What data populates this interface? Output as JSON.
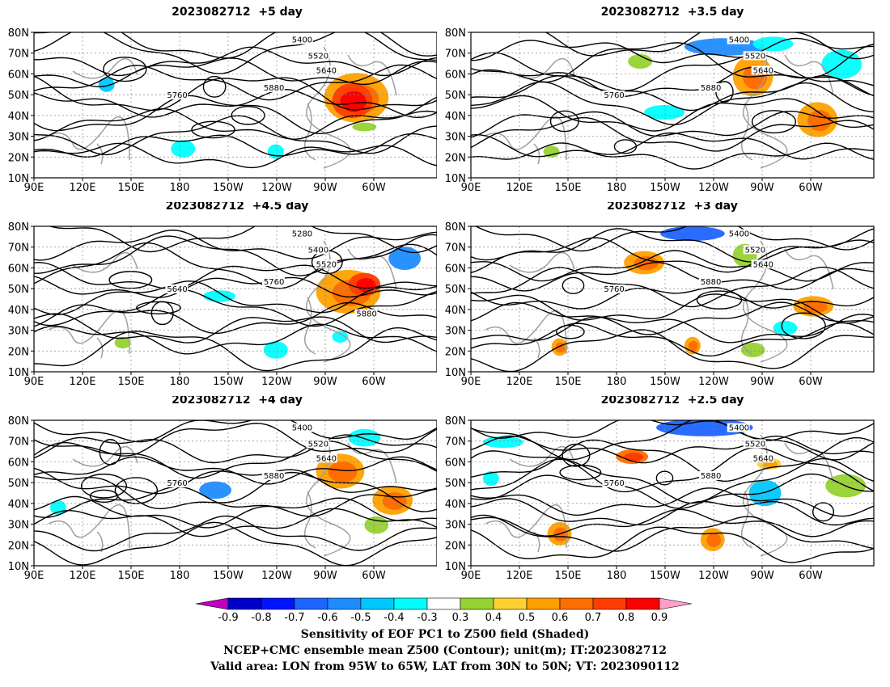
{
  "panels": [
    {
      "title": "2023082712  +5 day",
      "contour_labels": [
        "5400",
        "5520",
        "5640",
        "5760",
        "5880"
      ]
    },
    {
      "title": "2023082712  +3.5 day",
      "contour_labels": [
        "5400",
        "5520",
        "5640",
        "5760",
        "5880"
      ]
    },
    {
      "title": "2023082712  +4.5 day",
      "contour_labels": [
        "5280",
        "5400",
        "5520",
        "5640",
        "5760",
        "5880"
      ]
    },
    {
      "title": "2023082712  +3 day",
      "contour_labels": [
        "5400",
        "5520",
        "5640",
        "5760",
        "5880"
      ]
    },
    {
      "title": "2023082712  +4 day",
      "contour_labels": [
        "5400",
        "5520",
        "5640",
        "5760",
        "5880"
      ]
    },
    {
      "title": "2023082712  +2.5 day",
      "contour_labels": [
        "5400",
        "5520",
        "5640",
        "5760",
        "5880"
      ]
    }
  ],
  "lat_labels": [
    "80N",
    "70N",
    "60N",
    "50N",
    "40N",
    "30N",
    "20N",
    "10N"
  ],
  "lon_labels": [
    "90E",
    "120E",
    "150E",
    "180",
    "150W",
    "120W",
    "90W",
    "60W"
  ],
  "colorbar": {
    "ticks": [
      "-0.9",
      "-0.8",
      "-0.7",
      "-0.6",
      "-0.5",
      "-0.4",
      "-0.3",
      "0.3",
      "0.4",
      "0.5",
      "0.6",
      "0.7",
      "0.8",
      "0.9"
    ],
    "colors": [
      "#c000c0",
      "#0000c8",
      "#0014ff",
      "#1e64ff",
      "#1e8cff",
      "#00c8ff",
      "#00ffff",
      "#ffffff",
      "#96d232",
      "#ffd232",
      "#ffa000",
      "#ff6e00",
      "#ff3c00",
      "#ff0000",
      "#ffa0c8"
    ]
  },
  "captions": {
    "line1": "Sensitivity of EOF PC1 to Z500 field (Shaded)",
    "line2": "NCEP+CMC ensemble mean Z500 (Contour); unit(m); IT:2023082712",
    "line3": "Valid area: LON from 95W to 65W, LAT from 30N to 50N; VT: 2023090112"
  }
}
